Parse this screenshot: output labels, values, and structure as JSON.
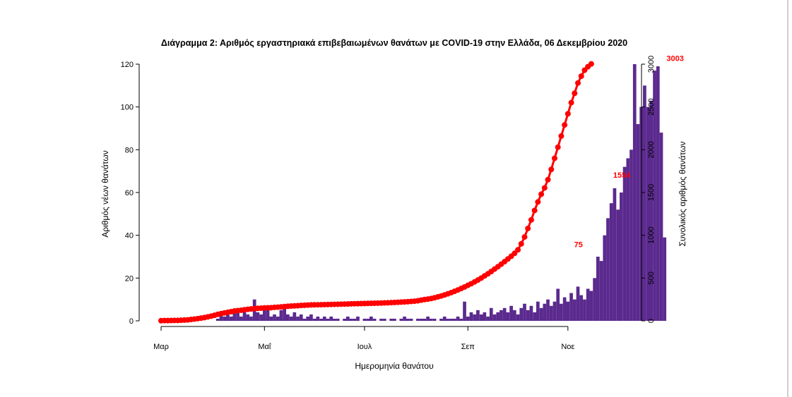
{
  "chart_data": {
    "type": "bar",
    "title": "Διάγραμμα 2: Αριθμός εργαστηριακά επιβεβαιωμένων θανάτων με COVID-19 στην Ελλάδα, 06 Δεκεμβρίου 2020",
    "xlabel": "Ημερομηνία θανάτου",
    "ylabel": "Αριθμός νέων θανάτων",
    "y2label": "Συνολικός αριθμός θανάτων",
    "xticks": [
      {
        "day": 0,
        "label": "Μαρ"
      },
      {
        "day": 31,
        "label": "Μαΐ"
      },
      {
        "day": 61,
        "label": "Ιουλ"
      },
      {
        "day": 92,
        "label": "Σεπ"
      },
      {
        "day": 122,
        "label": "Νοε"
      }
    ],
    "yticks": [
      0,
      20,
      40,
      60,
      80,
      100,
      120
    ],
    "y2ticks": [
      0,
      500,
      1000,
      1500,
      2000,
      2500,
      3000
    ],
    "ylim": [
      0,
      120
    ],
    "y2lim": [
      0,
      3000
    ],
    "bar_color": "#5b2a8e",
    "line_color": "#ff0000",
    "annotations": [
      {
        "label": "75",
        "day": 126,
        "y2": 830
      },
      {
        "label": "1554",
        "day": 139,
        "y2": 1640
      },
      {
        "label": "3003",
        "day": 155,
        "y2": 3003
      }
    ],
    "bars_per_day": [
      0,
      0,
      0,
      0,
      0,
      0,
      0,
      0,
      0,
      0,
      0,
      0,
      0,
      0,
      0,
      0,
      0,
      1,
      3,
      2,
      4,
      2,
      5,
      4,
      2,
      6,
      3,
      2,
      10,
      4,
      3,
      5,
      7,
      2,
      3,
      2,
      5,
      7,
      3,
      2,
      4,
      2,
      3,
      1,
      2,
      3,
      1,
      2,
      1,
      2,
      1,
      2,
      1,
      1,
      0,
      1,
      2,
      1,
      1,
      2,
      0,
      1,
      1,
      2,
      1,
      0,
      1,
      1,
      0,
      1,
      1,
      0,
      1,
      2,
      1,
      1,
      0,
      1,
      1,
      1,
      2,
      1,
      1,
      0,
      1,
      2,
      1,
      1,
      1,
      2,
      1,
      9,
      2,
      4,
      3,
      5,
      3,
      4,
      2,
      6,
      3,
      4,
      5,
      6,
      4,
      7,
      5,
      3,
      6,
      8,
      5,
      7,
      4,
      9,
      6,
      8,
      10,
      7,
      9,
      15,
      8,
      11,
      9,
      13,
      10,
      16,
      12,
      10,
      15,
      14,
      20,
      30,
      28,
      40,
      48,
      55,
      62,
      52,
      60,
      72,
      76,
      80,
      120,
      92,
      100,
      110,
      100,
      103,
      117,
      119,
      88,
      39
    ],
    "cumulative": [
      2,
      3,
      3,
      4,
      5,
      5,
      7,
      9,
      11,
      16,
      21,
      26,
      32,
      38,
      46,
      55,
      65,
      76,
      84,
      93,
      100,
      107,
      115,
      120,
      124,
      130,
      135,
      139,
      143,
      146,
      148,
      151,
      152,
      154,
      158,
      160,
      163,
      167,
      170,
      173,
      175,
      177,
      180,
      182,
      184,
      186,
      187,
      188,
      189,
      190,
      191,
      192,
      193,
      194,
      195,
      196,
      197,
      199,
      200,
      201,
      202,
      203,
      204,
      205,
      206,
      207,
      208,
      210,
      211,
      213,
      215,
      217,
      219,
      221,
      224,
      227,
      230,
      235,
      242,
      249,
      254,
      261,
      270,
      280,
      291,
      303,
      316,
      330,
      345,
      361,
      378,
      396,
      415,
      434,
      455,
      477,
      500,
      525,
      550,
      577,
      605,
      633,
      662,
      692,
      723,
      755,
      789,
      830,
      900,
      980,
      1080,
      1180,
      1290,
      1390,
      1480,
      1554,
      1650,
      1770,
      1900,
      2030,
      2160,
      2290,
      2420,
      2550,
      2660,
      2780,
      2860,
      2930,
      2970,
      3003
    ]
  }
}
